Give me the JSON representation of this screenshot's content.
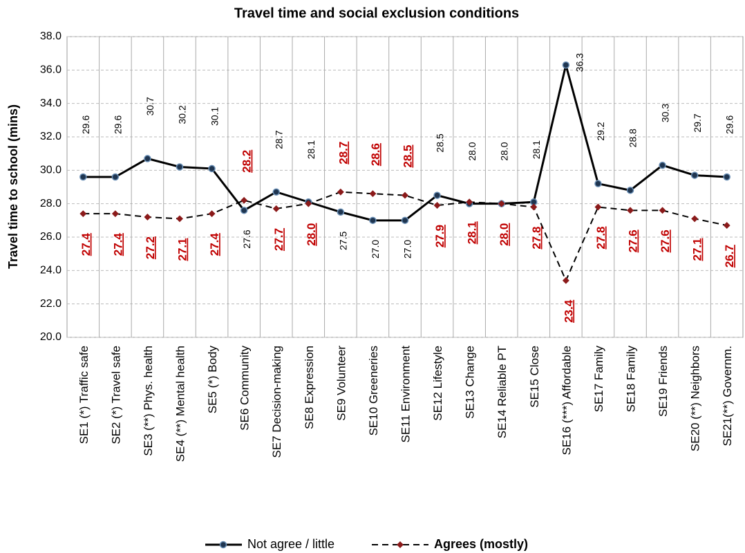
{
  "chart_data": {
    "type": "line",
    "title": "Travel time and social exclusion conditions",
    "y_label": "Travel time to school (mins)",
    "categories": [
      "SE1 (*) Traffic safe",
      "SE2 (*) Travel safe",
      "SE3 (**) Phys. health",
      "SE4 (**) Mental health",
      "SE5 (*) Body",
      "SE6 Community",
      "SE7 Decision-making",
      "SE8 Expression",
      "SE9 Volunteer",
      "SE10 Greeneries",
      "SE11 Environment",
      "SE12 Lifestyle",
      "SE13 Change",
      "SE14 Reliable PT",
      "SE15 Close",
      "SE16 (***) Affordable",
      "SE17 Family",
      "SE18 Family",
      "SE19 Friends",
      "SE20 (**) Neighbors",
      "SE21(**) Governm."
    ],
    "series": [
      {
        "name": "Not agree / little",
        "color": "#000000",
        "values": [
          29.6,
          29.6,
          30.7,
          30.2,
          30.1,
          27.6,
          28.7,
          28.1,
          27.5,
          27.0,
          27.0,
          28.5,
          28.0,
          28.0,
          28.1,
          36.3,
          29.2,
          28.8,
          30.3,
          29.7,
          29.6
        ],
        "value_labels": [
          "29.6",
          "29.6",
          "30.7",
          "30.2",
          "30.1",
          "27.6",
          "28.7",
          "28.1",
          "27.5",
          "27.0",
          "27.0",
          "28.5",
          "28.0",
          "28.0",
          "28.1",
          "36.3",
          "29.2",
          "28.8",
          "30.3",
          "29.7",
          "29.6"
        ]
      },
      {
        "name": "Agrees (mostly)",
        "color": "#8b1a1a",
        "values": [
          27.4,
          27.4,
          27.2,
          27.1,
          27.4,
          28.2,
          27.7,
          28.0,
          28.7,
          28.6,
          28.5,
          27.9,
          28.1,
          28.0,
          27.8,
          23.4,
          27.8,
          27.6,
          27.6,
          27.1,
          26.7
        ],
        "value_labels": [
          "27.4",
          "27.4",
          "27.2",
          "27.1",
          "27.4",
          "28.2",
          "27.7",
          "28.0",
          "28.7",
          "28.6",
          "28.5",
          "27.9",
          "28.1",
          "28.0",
          "27.8",
          "23.4",
          "27.8",
          "27.6",
          "27.6",
          "27.1",
          "26.7"
        ]
      }
    ],
    "ylim": [
      20,
      38
    ],
    "yticks": [
      {
        "value": 20,
        "label": "20.0"
      },
      {
        "value": 22,
        "label": "22.0"
      },
      {
        "value": 24,
        "label": "24.0"
      },
      {
        "value": 26,
        "label": "26.0"
      },
      {
        "value": 28,
        "label": "28.0"
      },
      {
        "value": 30,
        "label": "30.0"
      },
      {
        "value": 32,
        "label": "32.0"
      },
      {
        "value": 34,
        "label": "34.0"
      },
      {
        "value": 36,
        "label": "36.0"
      },
      {
        "value": 38,
        "label": "38.0"
      }
    ],
    "grid": true,
    "legend": "bottom"
  }
}
